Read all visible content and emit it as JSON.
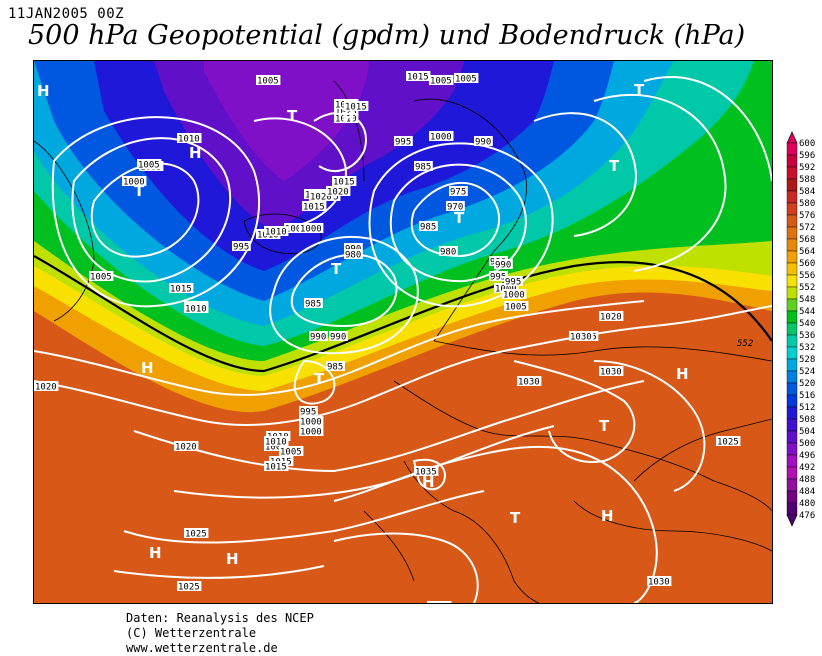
{
  "header": {
    "date": "11JAN2005 00Z",
    "title": "500 hPa Geopotential (gpdm) und Bodendruck (hPa)"
  },
  "footer": {
    "line1": "Daten: Reanalysis des NCEP",
    "line2": "(C) Wetterzentrale",
    "line3": "www.wetterzentrale.de"
  },
  "colorbar": {
    "levels": [
      "600",
      "596",
      "592",
      "588",
      "584",
      "580",
      "576",
      "572",
      "568",
      "564",
      "560",
      "556",
      "552",
      "548",
      "544",
      "540",
      "536",
      "532",
      "528",
      "524",
      "520",
      "516",
      "512",
      "508",
      "504",
      "500",
      "496",
      "492",
      "488",
      "484",
      "480",
      "476"
    ],
    "colors": [
      "#e0005a",
      "#c8003c",
      "#c8102a",
      "#b01818",
      "#c82828",
      "#d04020",
      "#d85818",
      "#e07010",
      "#e88808",
      "#f0a000",
      "#f4c000",
      "#f8e000",
      "#c0e000",
      "#60d020",
      "#00c020",
      "#00c868",
      "#00c8a8",
      "#00d0d0",
      "#00a8e0",
      "#0080e0",
      "#0058e0",
      "#0038e0",
      "#2018d8",
      "#4010d0",
      "#6010c8",
      "#8010c8",
      "#a010c0",
      "#b010b0",
      "#9010a0",
      "#700080",
      "#500070"
    ]
  },
  "map": {
    "pressure_labels": [
      "1005",
      "1015",
      "1010",
      "1005",
      "1010",
      "1000",
      "1005",
      "1000",
      "1010",
      "1005",
      "1015",
      "1005",
      "995",
      "1010",
      "1005",
      "1015",
      "1020",
      "1025",
      "1015",
      "1020",
      "1015",
      "1010",
      "1010",
      "1015",
      "1020",
      "1015",
      "1010",
      "1000",
      "990",
      "985",
      "980",
      "985",
      "995",
      "1000",
      "1005",
      "990",
      "995",
      "1000",
      "985",
      "990",
      "975",
      "970",
      "980",
      "990",
      "995",
      "1000",
      "1005",
      "985",
      "990",
      "990",
      "985",
      "995",
      "1000",
      "1005",
      "1010",
      "1015",
      "1020",
      "1020",
      "1025",
      "1020",
      "1025",
      "1030",
      "1030",
      "1035",
      "1025",
      "1030",
      "1025",
      "1030",
      "1030",
      "1015",
      "1005",
      "1000",
      "1010"
    ],
    "highs": [
      "H",
      "H",
      "H",
      "H",
      "H",
      "H",
      "H",
      "H",
      "H"
    ],
    "lows": [
      "T",
      "T",
      "T",
      "T",
      "T",
      "T",
      "T",
      "T",
      "T"
    ],
    "contour_value_label": "552"
  }
}
